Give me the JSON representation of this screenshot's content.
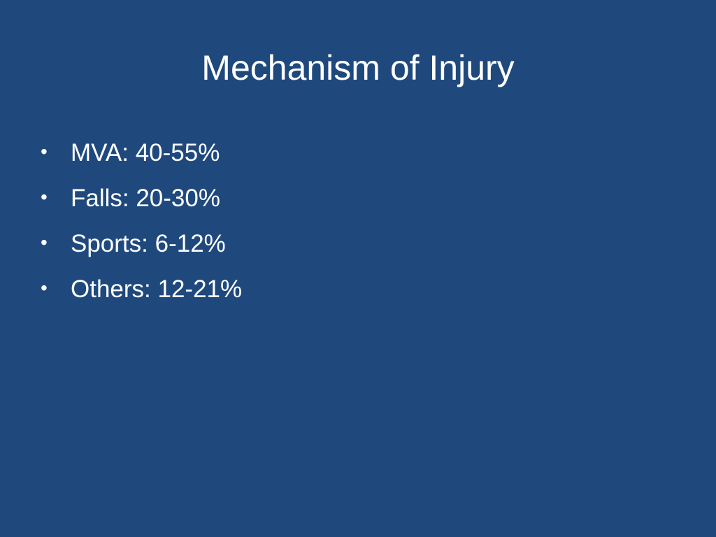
{
  "slide": {
    "title": "Mechanism of Injury",
    "bullet_symbol": "•",
    "bullets": [
      "MVA: 40-55%",
      "Falls: 20-30%",
      "Sports: 6-12%",
      "Others: 12-21%"
    ],
    "colors": {
      "background": "#1f497d",
      "text": "#ffffff"
    }
  }
}
